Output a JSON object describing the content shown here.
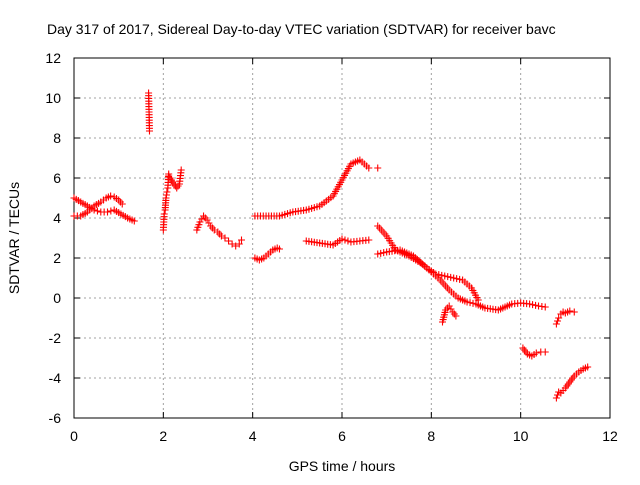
{
  "chart_data": {
    "type": "scatter",
    "title": "Day 317 of 2017, Sidereal Day-to-day VTEC variation (SDTVAR) for receiver bavc",
    "xlabel": "GPS time / hours",
    "ylabel": "SDTVAR / TECUs",
    "xlim": [
      0,
      12
    ],
    "ylim": [
      -6,
      12
    ],
    "xticks": [
      0,
      2,
      4,
      6,
      8,
      10,
      12
    ],
    "yticks": [
      -6,
      -4,
      -2,
      0,
      2,
      4,
      6,
      8,
      10,
      12
    ],
    "xtick_labels": [
      "0",
      "2",
      "4",
      "6",
      "8",
      "10",
      "12"
    ],
    "ytick_labels": [
      "-6",
      "-4",
      "-2",
      "0",
      "2",
      "4",
      "6",
      "8",
      "10",
      "12"
    ],
    "grid": true,
    "marker": "+",
    "color": "#ff0000",
    "segments": [
      {
        "x": [
          0.0,
          0.15,
          0.3,
          0.45,
          0.6,
          0.75,
          0.9,
          1.05,
          1.2,
          1.35
        ],
        "y": [
          5.0,
          4.8,
          4.6,
          4.4,
          4.3,
          4.3,
          4.4,
          4.2,
          4.0,
          3.85
        ]
      },
      {
        "x": [
          0.0,
          0.15,
          0.3,
          0.45,
          0.6,
          0.72,
          0.82,
          0.9,
          1.0,
          1.08
        ],
        "y": [
          4.1,
          4.1,
          4.3,
          4.6,
          4.8,
          5.0,
          5.1,
          5.05,
          4.9,
          4.7
        ]
      },
      {
        "x": [
          1.67,
          1.68,
          1.69
        ],
        "y": [
          10.25,
          9.3,
          8.35
        ]
      },
      {
        "x": [
          2.0,
          2.02,
          2.04,
          2.06,
          2.08,
          2.1,
          2.12
        ],
        "y": [
          3.4,
          4.2,
          4.4,
          5.0,
          5.3,
          5.5,
          6.2
        ]
      },
      {
        "x": [
          2.12,
          2.18,
          2.24,
          2.3,
          2.36,
          2.4
        ],
        "y": [
          6.1,
          5.9,
          5.7,
          5.5,
          5.7,
          6.4
        ]
      },
      {
        "x": [
          2.75,
          2.82,
          2.9,
          2.98,
          3.06,
          3.14,
          3.22,
          3.3,
          3.38,
          3.46,
          3.54,
          3.62,
          3.7,
          3.75
        ],
        "y": [
          3.4,
          3.8,
          4.1,
          3.9,
          3.6,
          3.4,
          3.3,
          3.1,
          3.0,
          2.85,
          2.7,
          2.6,
          2.7,
          2.9
        ]
      },
      {
        "x": [
          4.05,
          4.15,
          4.25,
          4.35,
          4.45,
          4.55,
          4.6
        ],
        "y": [
          2.0,
          1.9,
          2.0,
          2.2,
          2.4,
          2.5,
          2.45
        ]
      },
      {
        "x": [
          4.05,
          4.3,
          4.6,
          4.9,
          5.2,
          5.5,
          5.8,
          6.0,
          6.2,
          6.4,
          6.6
        ],
        "y": [
          4.1,
          4.1,
          4.1,
          4.3,
          4.4,
          4.6,
          5.1,
          5.9,
          6.7,
          6.9,
          6.5
        ]
      },
      {
        "x": [
          6.8
        ],
        "y": [
          6.5
        ]
      },
      {
        "x": [
          5.2,
          5.5,
          5.8,
          6.0,
          6.2,
          6.4,
          6.6
        ],
        "y": [
          2.85,
          2.75,
          2.65,
          2.95,
          2.8,
          2.85,
          2.9
        ]
      },
      {
        "x": [
          6.8,
          7.0,
          7.2,
          7.5,
          7.8,
          8.0,
          8.2,
          8.4,
          8.6,
          8.8,
          9.0,
          9.2,
          9.5,
          9.8,
          10.0,
          10.2,
          10.4,
          10.55
        ],
        "y": [
          3.6,
          3.1,
          2.4,
          2.1,
          1.7,
          1.3,
          0.9,
          0.4,
          0.0,
          -0.2,
          -0.3,
          -0.5,
          -0.6,
          -0.3,
          -0.25,
          -0.3,
          -0.4,
          -0.45
        ]
      },
      {
        "x": [
          6.8,
          7.0,
          7.3,
          7.6,
          7.9,
          8.1,
          8.3,
          8.5,
          8.7,
          8.9,
          9.05
        ],
        "y": [
          2.2,
          2.3,
          2.4,
          2.1,
          1.5,
          1.2,
          1.1,
          1.0,
          0.9,
          0.5,
          -0.1
        ]
      },
      {
        "x": [
          8.25,
          8.32,
          8.4,
          8.48,
          8.55
        ],
        "y": [
          -1.2,
          -0.6,
          -0.4,
          -0.7,
          -0.9
        ]
      },
      {
        "x": [
          10.05,
          10.15,
          10.25,
          10.35,
          10.45,
          10.55
        ],
        "y": [
          -2.5,
          -2.8,
          -2.9,
          -2.75,
          -2.7,
          -2.7
        ]
      },
      {
        "x": [
          10.8,
          10.85,
          10.9,
          10.95,
          11.0,
          11.1,
          11.2
        ],
        "y": [
          -1.3,
          -1.0,
          -0.8,
          -0.7,
          -0.75,
          -0.65,
          -0.7
        ]
      },
      {
        "x": [
          10.8,
          10.85,
          10.9,
          11.0,
          11.1,
          11.2,
          11.3,
          11.4,
          11.5
        ],
        "y": [
          -5.0,
          -4.7,
          -4.75,
          -4.5,
          -4.2,
          -3.9,
          -3.7,
          -3.55,
          -3.45
        ]
      }
    ]
  }
}
